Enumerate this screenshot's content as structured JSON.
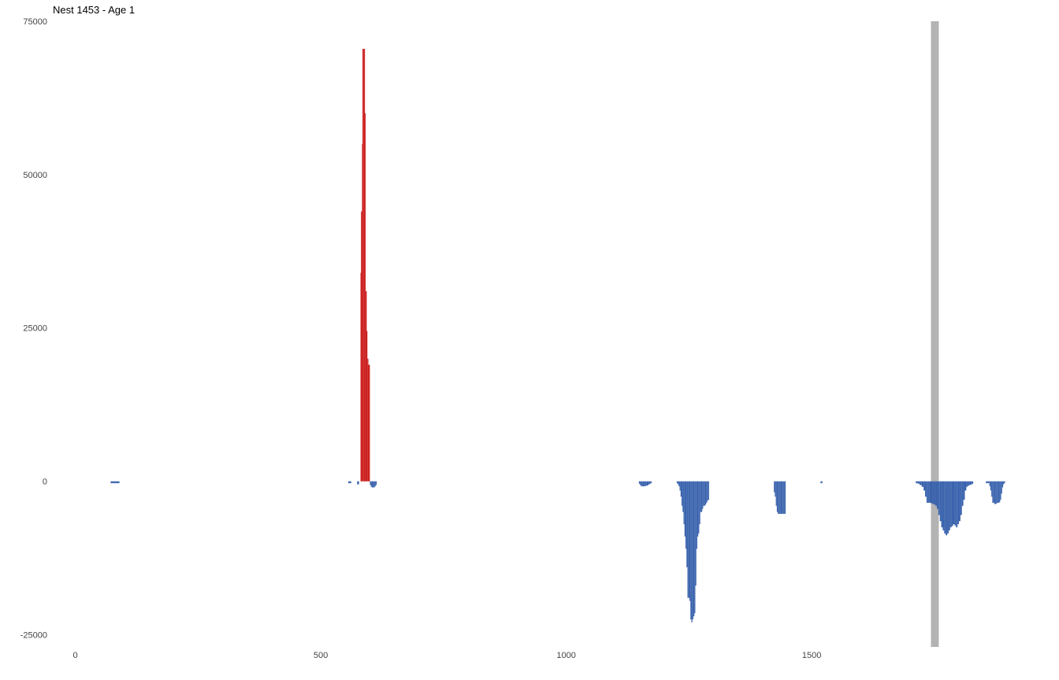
{
  "chart_data": {
    "type": "bar",
    "title": "Nest 1453 - Age 1",
    "xlabel": "",
    "ylabel": "",
    "xlim": [
      -25,
      1930
    ],
    "ylim": [
      -27000,
      75000
    ],
    "grid": false,
    "legend": "none",
    "x_ticks": [
      {
        "value": 0,
        "label": "0"
      },
      {
        "value": 500,
        "label": "500"
      },
      {
        "value": 1000,
        "label": "1000"
      },
      {
        "value": 1500,
        "label": "1500"
      }
    ],
    "y_ticks": [
      {
        "value": -25000,
        "label": "-25000"
      },
      {
        "value": 0,
        "label": "0"
      },
      {
        "value": 25000,
        "label": "25000"
      },
      {
        "value": 50000,
        "label": "50000"
      },
      {
        "value": 75000,
        "label": "75000"
      }
    ],
    "colors": {
      "positive": "#cc1f1f",
      "negative": "#3a63ad",
      "highlight_band": "#b3b3b3"
    },
    "highlight_band": {
      "x_start": 1743,
      "x_end": 1759
    },
    "series": [
      {
        "sign": "positive",
        "points": [
          [
            581,
            34000
          ],
          [
            582,
            44000
          ],
          [
            584,
            55000
          ],
          [
            585,
            70500
          ],
          [
            587,
            70500
          ],
          [
            588,
            70500
          ],
          [
            590,
            60000
          ],
          [
            591,
            31000
          ],
          [
            592,
            31000
          ],
          [
            593,
            24500
          ],
          [
            595,
            20000
          ],
          [
            597,
            19000
          ],
          [
            598,
            19000
          ]
        ]
      },
      {
        "sign": "negative",
        "points": [
          [
            72,
            -300
          ],
          [
            76,
            -300
          ],
          [
            80,
            -300
          ],
          [
            84,
            -300
          ],
          [
            88,
            -300
          ],
          [
            556,
            -300
          ],
          [
            560,
            -300
          ],
          [
            574,
            -500
          ],
          [
            576,
            -500
          ],
          [
            600,
            -600
          ],
          [
            602,
            -900
          ],
          [
            604,
            -1000
          ],
          [
            606,
            -1000
          ],
          [
            608,
            -1000
          ],
          [
            610,
            -800
          ],
          [
            612,
            -600
          ],
          [
            1148,
            -400
          ],
          [
            1150,
            -600
          ],
          [
            1152,
            -800
          ],
          [
            1154,
            -800
          ],
          [
            1156,
            -800
          ],
          [
            1158,
            -800
          ],
          [
            1160,
            -800
          ],
          [
            1162,
            -700
          ],
          [
            1164,
            -700
          ],
          [
            1166,
            -600
          ],
          [
            1168,
            -500
          ],
          [
            1170,
            -400
          ],
          [
            1172,
            -300
          ],
          [
            1225,
            -300
          ],
          [
            1227,
            -500
          ],
          [
            1229,
            -800
          ],
          [
            1231,
            -1500
          ],
          [
            1233,
            -2500
          ],
          [
            1235,
            -4000
          ],
          [
            1237,
            -5000
          ],
          [
            1239,
            -7000
          ],
          [
            1241,
            -9000
          ],
          [
            1243,
            -11000
          ],
          [
            1245,
            -14000
          ],
          [
            1247,
            -19000
          ],
          [
            1249,
            -19000
          ],
          [
            1251,
            -19500
          ],
          [
            1253,
            -22500
          ],
          [
            1255,
            -23000
          ],
          [
            1257,
            -22500
          ],
          [
            1259,
            -22000
          ],
          [
            1261,
            -21500
          ],
          [
            1263,
            -17000
          ],
          [
            1265,
            -11000
          ],
          [
            1267,
            -9000
          ],
          [
            1269,
            -8500
          ],
          [
            1271,
            -7000
          ],
          [
            1273,
            -5000
          ],
          [
            1275,
            -5000
          ],
          [
            1277,
            -4500
          ],
          [
            1279,
            -4000
          ],
          [
            1281,
            -4000
          ],
          [
            1283,
            -3800
          ],
          [
            1285,
            -3500
          ],
          [
            1287,
            -3200
          ],
          [
            1289,
            -3000
          ],
          [
            1423,
            -1800
          ],
          [
            1425,
            -2500
          ],
          [
            1427,
            -4000
          ],
          [
            1429,
            -5000
          ],
          [
            1431,
            -5300
          ],
          [
            1433,
            -5300
          ],
          [
            1435,
            -5300
          ],
          [
            1437,
            -5300
          ],
          [
            1439,
            -5300
          ],
          [
            1441,
            -5300
          ],
          [
            1443,
            -5300
          ],
          [
            1445,
            -5300
          ],
          [
            1518,
            -300
          ],
          [
            1520,
            -300
          ],
          [
            1712,
            -300
          ],
          [
            1716,
            -400
          ],
          [
            1720,
            -600
          ],
          [
            1724,
            -900
          ],
          [
            1728,
            -1500
          ],
          [
            1731,
            -2500
          ],
          [
            1734,
            -3500
          ],
          [
            1737,
            -3500
          ],
          [
            1740,
            -3500
          ],
          [
            1743,
            -3600
          ],
          [
            1746,
            -3700
          ],
          [
            1749,
            -3800
          ],
          [
            1752,
            -4000
          ],
          [
            1755,
            -4500
          ],
          [
            1758,
            -5500
          ],
          [
            1761,
            -6500
          ],
          [
            1764,
            -7500
          ],
          [
            1767,
            -8000
          ],
          [
            1770,
            -8500
          ],
          [
            1773,
            -8800
          ],
          [
            1776,
            -8500
          ],
          [
            1779,
            -8000
          ],
          [
            1782,
            -7500
          ],
          [
            1785,
            -7300
          ],
          [
            1788,
            -7000
          ],
          [
            1791,
            -7200
          ],
          [
            1794,
            -7500
          ],
          [
            1797,
            -7000
          ],
          [
            1800,
            -6500
          ],
          [
            1803,
            -5500
          ],
          [
            1806,
            -4000
          ],
          [
            1809,
            -3000
          ],
          [
            1812,
            -1500
          ],
          [
            1815,
            -900
          ],
          [
            1818,
            -700
          ],
          [
            1821,
            -600
          ],
          [
            1824,
            -500
          ],
          [
            1827,
            -400
          ],
          [
            1855,
            -300
          ],
          [
            1858,
            -300
          ],
          [
            1862,
            -800
          ],
          [
            1864,
            -1500
          ],
          [
            1866,
            -2500
          ],
          [
            1868,
            -3500
          ],
          [
            1870,
            -3500
          ],
          [
            1872,
            -3700
          ],
          [
            1874,
            -3700
          ],
          [
            1876,
            -3600
          ],
          [
            1878,
            -3500
          ],
          [
            1880,
            -3500
          ],
          [
            1882,
            -3400
          ],
          [
            1884,
            -3000
          ],
          [
            1886,
            -2000
          ],
          [
            1888,
            -1000
          ],
          [
            1890,
            -500
          ],
          [
            1892,
            -300
          ]
        ]
      }
    ]
  }
}
